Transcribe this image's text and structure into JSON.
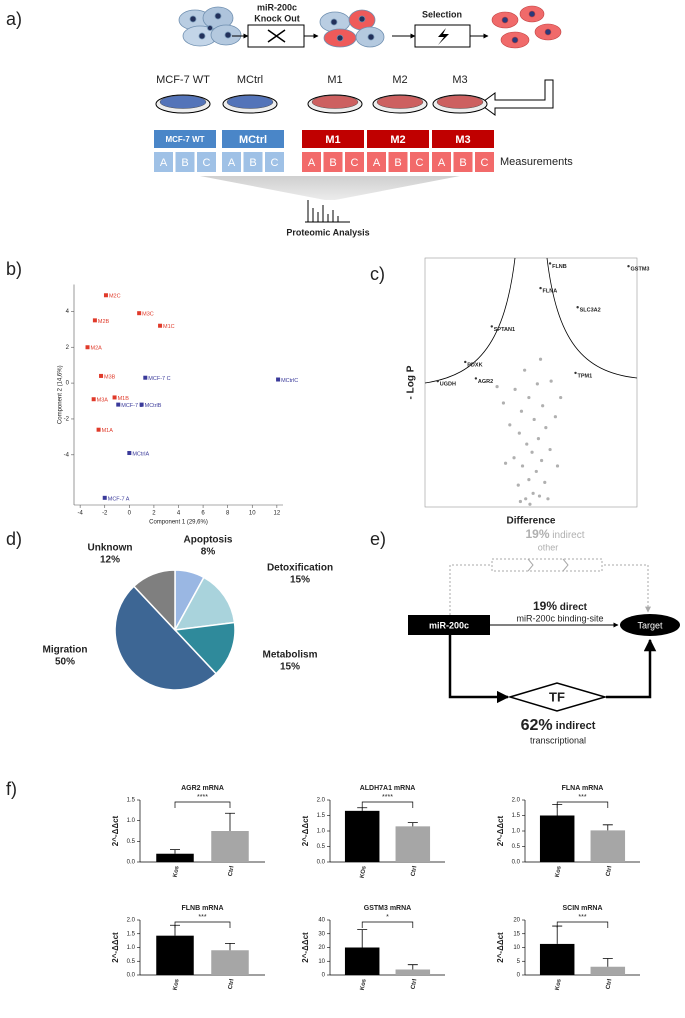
{
  "panel_labels": [
    "a)",
    "b)",
    "c)",
    "d)",
    "e)",
    "f)"
  ],
  "workflow": {
    "knockout_label": [
      "miR-200c",
      "Knock Out"
    ],
    "selection_label": "Selection",
    "dishes": [
      {
        "name": "MCF-7 WT",
        "color": "#3a5fb0"
      },
      {
        "name": "MCtrl",
        "color": "#3a5fb0"
      },
      {
        "name": "M1",
        "color": "#c84848"
      },
      {
        "name": "M2",
        "color": "#c84848"
      },
      {
        "name": "M3",
        "color": "#c84848"
      }
    ],
    "groups": [
      {
        "name": "MCF-7 WT",
        "replicates": [
          "A",
          "B",
          "C"
        ],
        "color": "#4a86c8",
        "replicate_color": "#9fc1e6"
      },
      {
        "name": "MCtrl",
        "replicates": [
          "A",
          "B",
          "C"
        ],
        "color": "#4a86c8",
        "replicate_color": "#9fc1e6"
      },
      {
        "name": "M1",
        "replicates": [
          "A",
          "B",
          "C"
        ],
        "color": "#c00000",
        "replicate_color": "#f26a6a"
      },
      {
        "name": "M2",
        "replicates": [
          "A",
          "B",
          "C"
        ],
        "color": "#c00000",
        "replicate_color": "#f26a6a"
      },
      {
        "name": "M3",
        "replicates": [
          "A",
          "B",
          "C"
        ],
        "color": "#c00000",
        "replicate_color": "#f26a6a"
      }
    ],
    "measurements_label": "Measurements",
    "analysis_label": "Proteomic Analysis"
  },
  "diagram": {
    "other": {
      "percent": "19%",
      "label": "indirect",
      "sub": "other"
    },
    "direct": {
      "percent": "19%",
      "label": "direct",
      "sub": "miR-200c binding-site"
    },
    "transcriptional": {
      "percent": "62%",
      "label": "indirect",
      "sub": "transcriptional"
    },
    "source": "miR-200c",
    "target": "Target",
    "tf": "TF"
  },
  "chart_data": [
    {
      "type": "scatter",
      "xlabel": "Component 1 (29,6%)",
      "ylabel": "Component 2 (14,6%)",
      "point_labels": [
        "M2C",
        "M2B",
        "M2A",
        "M3C",
        "M1C",
        "M3B",
        "M3A",
        "M1B",
        "MCF-7 C",
        "MCF-7 B",
        "MCtrlB",
        "M1A",
        "MCtrlA",
        "MCF-7 A",
        "MCtrlC"
      ],
      "x": [
        -1.9,
        -2.8,
        -3.4,
        0.8,
        2.5,
        -2.3,
        -2.9,
        -1.2,
        1.3,
        -0.9,
        1.0,
        -2.5,
        0.0,
        -2.0,
        12.1
      ],
      "values": [
        4.9,
        3.5,
        2.0,
        3.9,
        3.2,
        0.4,
        -0.9,
        -0.8,
        0.3,
        -1.2,
        -1.2,
        -2.6,
        -3.9,
        -6.4,
        0.2
      ],
      "colors": [
        "#e03a2a",
        "#e03a2a",
        "#e03a2a",
        "#e03a2a",
        "#e03a2a",
        "#e03a2a",
        "#e03a2a",
        "#e03a2a",
        "#3a3a9a",
        "#3a3a9a",
        "#3a3a9a",
        "#e03a2a",
        "#3a3a9a",
        "#3a3a9a",
        "#3a3a9a"
      ],
      "xlim": [
        -4.5,
        12.5
      ],
      "ylim": [
        -6.8,
        5.5
      ],
      "xticks": [
        -4,
        -2,
        0,
        2,
        4,
        6,
        8,
        10,
        12
      ],
      "yticks": [
        -4,
        -2,
        0,
        2,
        4
      ]
    },
    {
      "type": "volcano",
      "xlabel": "Difference",
      "ylabel": "- Log P",
      "xlim": [
        -10,
        10
      ],
      "ylim": [
        0,
        9.1
      ],
      "series": [
        {
          "color": "#333333",
          "point_labels": [
            "FLNB",
            "GSTM3",
            "FLNA",
            "SLC3A2",
            "SPTAN1",
            "PDXK",
            "TPM1",
            "UGDH",
            "AGR2"
          ],
          "x": [
            1.8,
            9.2,
            0.9,
            4.4,
            -3.7,
            -6.2,
            4.2,
            -8.8,
            -5.2
          ],
          "values": [
            8.9,
            8.8,
            8.0,
            7.3,
            6.6,
            5.3,
            4.9,
            4.6,
            4.7
          ]
        },
        {
          "color": "#b0b0b0",
          "x": [
            -0.5,
            0.2,
            0.8,
            -1.2,
            1.3,
            -0.2,
            0.5,
            -0.8,
            1.0,
            -1.6,
            0.1,
            1.8,
            -0.4,
            0.7,
            -1.1,
            1.4,
            -2.0,
            0.3,
            2.3,
            -0.9,
            1.1,
            -2.6,
            -0.2,
            2.8,
            -1.5,
            0.6,
            -3.2,
            1.9,
            -0.6,
            0.9,
            -1.0,
            1.6,
            -0.1,
            2.5,
            -2.4
          ],
          "values": [
            0.3,
            0.5,
            0.4,
            0.8,
            0.9,
            1.0,
            1.3,
            1.5,
            1.7,
            1.8,
            2.0,
            2.1,
            2.3,
            2.5,
            2.7,
            2.9,
            3.0,
            3.2,
            3.3,
            3.5,
            3.7,
            3.8,
            4.0,
            4.0,
            4.3,
            4.5,
            4.4,
            4.6,
            5.0,
            5.4,
            0.2,
            0.3,
            0.1,
            1.5,
            1.6
          ]
        }
      ]
    },
    {
      "type": "pie",
      "categories": [
        "Apoptosis",
        "Detoxification",
        "Metabolism",
        "Migration",
        "Unknown"
      ],
      "values": [
        8,
        15,
        15,
        50,
        12
      ],
      "value_labels": [
        "8%",
        "15%",
        "15%",
        "50%",
        "12%"
      ],
      "colors": [
        "#9ab7e3",
        "#a9d3dc",
        "#2f8a9b",
        "#3d6694",
        "#7f7f7f"
      ]
    },
    {
      "type": "bar",
      "title": "AGR2 mRNA",
      "ylabel": "2^-ΔΔct",
      "categories": [
        "Kos",
        "Ctrl"
      ],
      "values": [
        0.2,
        0.75
      ],
      "errors": [
        0.1,
        0.43
      ],
      "colors": [
        "#000000",
        "#a6a6a6"
      ],
      "significance": "****",
      "ylim": [
        0,
        1.5
      ],
      "yticks": [
        {
          "value": 0,
          "label": "0.0"
        },
        0.5,
        {
          "value": 1,
          "label": "1.0"
        },
        1.5
      ]
    },
    {
      "type": "bar",
      "title": "ALDH7A1 mRNA",
      "ylabel": "2^-ΔΔct",
      "categories": [
        "KOs",
        "Ctrl"
      ],
      "values": [
        1.65,
        1.15
      ],
      "errors": [
        0.1,
        0.12
      ],
      "colors": [
        "#000000",
        "#a6a6a6"
      ],
      "significance": "****",
      "ylim": [
        0,
        2
      ],
      "yticks": [
        {
          "value": 0,
          "label": "0.0"
        },
        0.5,
        {
          "value": 1,
          "label": "1.0"
        },
        1.5,
        {
          "value": 2,
          "label": "2.0"
        }
      ]
    },
    {
      "type": "bar",
      "title": "FLNA mRNA",
      "ylabel": "2^-ΔΔct",
      "categories": [
        "Kos",
        "Ctrl"
      ],
      "values": [
        1.5,
        1.02
      ],
      "errors": [
        0.35,
        0.18
      ],
      "colors": [
        "#000000",
        "#a6a6a6"
      ],
      "significance": "***",
      "ylim": [
        0,
        2
      ],
      "yticks": [
        {
          "value": 0,
          "label": "0.0"
        },
        0.5,
        {
          "value": 1,
          "label": "1.0"
        },
        1.5,
        {
          "value": 2,
          "label": "2.0"
        }
      ]
    },
    {
      "type": "bar",
      "title": "FLNB mRNA",
      "ylabel": "2^-ΔΔct",
      "categories": [
        "Kos",
        "Ctrl"
      ],
      "values": [
        1.43,
        0.9
      ],
      "errors": [
        0.38,
        0.25
      ],
      "colors": [
        "#000000",
        "#a6a6a6"
      ],
      "significance": "***",
      "ylim": [
        0,
        2
      ],
      "yticks": [
        {
          "value": 0,
          "label": "0.0"
        },
        0.5,
        {
          "value": 1,
          "label": "1.0"
        },
        1.5,
        {
          "value": 2,
          "label": "2.0"
        }
      ]
    },
    {
      "type": "bar",
      "title": "GSTM3 mRNA",
      "ylabel": "2^-ΔΔct",
      "categories": [
        "Kos",
        "Ctrl"
      ],
      "values": [
        20,
        4
      ],
      "errors": [
        13,
        3.5
      ],
      "colors": [
        "#000000",
        "#a6a6a6"
      ],
      "significance": "*",
      "ylim": [
        0,
        40
      ],
      "yticks": [
        0,
        10,
        20,
        30,
        40
      ]
    },
    {
      "type": "bar",
      "title": "SCIN mRNA",
      "ylabel": "2^-ΔΔct",
      "categories": [
        "Kos",
        "Ctrl"
      ],
      "values": [
        11.3,
        3
      ],
      "errors": [
        6.5,
        3
      ],
      "colors": [
        "#000000",
        "#a6a6a6"
      ],
      "significance": "***",
      "ylim": [
        0,
        20
      ],
      "yticks": [
        0,
        5,
        10,
        15,
        20
      ]
    }
  ]
}
